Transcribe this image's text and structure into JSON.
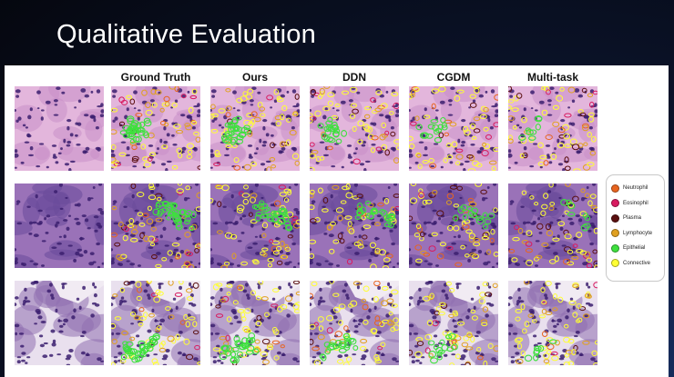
{
  "slide": {
    "title": "Qualitative Evaluation"
  },
  "columns": [
    {
      "key": "input",
      "label": ""
    },
    {
      "key": "gt",
      "label": "Ground Truth"
    },
    {
      "key": "ours",
      "label": "Ours"
    },
    {
      "key": "ddn",
      "label": "DDN"
    },
    {
      "key": "cgdm",
      "label": "CGDM"
    },
    {
      "key": "multitask",
      "label": "Multi-task"
    }
  ],
  "rows": 3,
  "legend": {
    "items": [
      {
        "label": "Neutrophil",
        "color": "#e8641f"
      },
      {
        "label": "Eosinophil",
        "color": "#d81b60"
      },
      {
        "label": "Plasma",
        "color": "#5a0f0f"
      },
      {
        "label": "Lymphocyte",
        "color": "#e0a020"
      },
      {
        "label": "Epithelial",
        "color": "#3ee03e"
      },
      {
        "label": "Connective",
        "color": "#ffff33"
      }
    ]
  },
  "colors": {
    "tissue_light": "#e7b8de",
    "tissue_mid": "#c98ac8",
    "tissue_dark": "#7d55a8",
    "nucleus": "#3b1f6e"
  }
}
